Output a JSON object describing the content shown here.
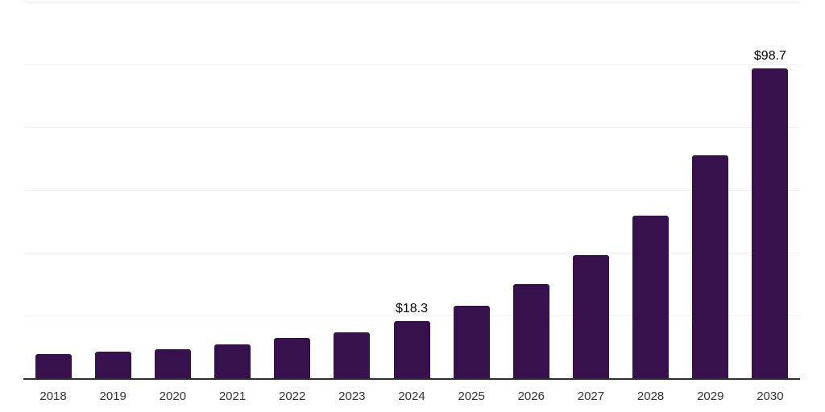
{
  "chart_data": {
    "type": "bar",
    "title": "",
    "xlabel": "",
    "ylabel": "",
    "categories": [
      "2018",
      "2019",
      "2020",
      "2021",
      "2022",
      "2023",
      "2024",
      "2025",
      "2026",
      "2027",
      "2028",
      "2029",
      "2030"
    ],
    "values": [
      7.7,
      8.5,
      9.2,
      10.8,
      12.7,
      14.7,
      18.3,
      23.1,
      30.0,
      39.2,
      51.8,
      71.0,
      98.7
    ],
    "annotations": [
      {
        "category": "2024",
        "text": "$18.3"
      },
      {
        "category": "2030",
        "text": "$98.7"
      }
    ],
    "ylim": [
      0,
      120
    ],
    "grid_step": 20,
    "grid": true,
    "legend": false,
    "bar_color": "#36114E",
    "gridline_color": "#f1f1f1",
    "axis_line_color": "#2e2e2e",
    "tick_label_color": "#333333",
    "annotation_color": "#000000"
  }
}
